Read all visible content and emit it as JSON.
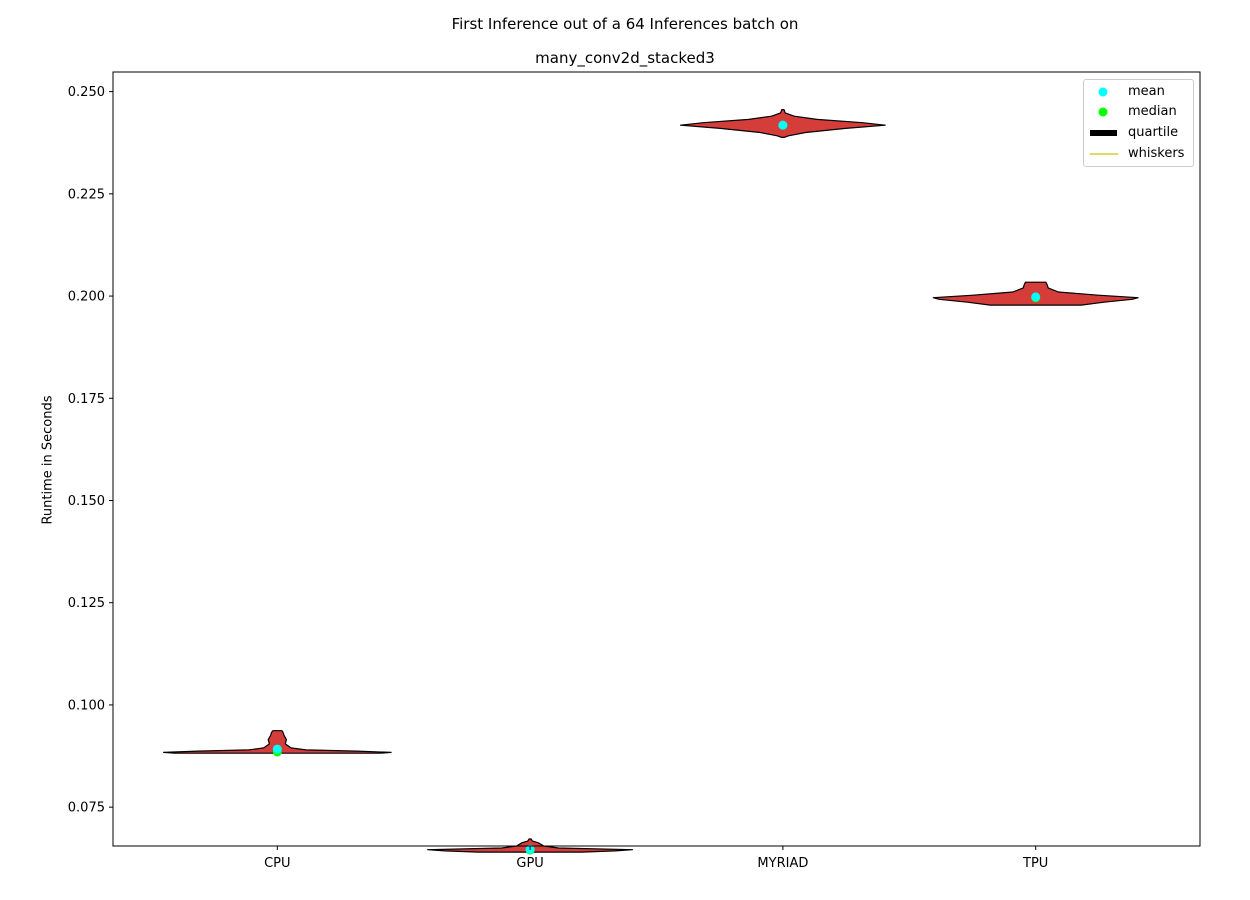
{
  "chart_data": {
    "type": "violin",
    "title_line1": "First Inference out of a 64 Inferences batch on",
    "title_line2": "many_conv2d_stacked3",
    "xlabel": "",
    "ylabel": "Runtime in Seconds",
    "categories": [
      "CPU",
      "GPU",
      "MYRIAD",
      "TPU"
    ],
    "ylim": [
      0.0655,
      0.2548
    ],
    "yticks": [
      0.075,
      0.1,
      0.125,
      0.15,
      0.175,
      0.2,
      0.225,
      0.25
    ],
    "ytick_labels": [
      "0.075",
      "0.100",
      "0.125",
      "0.150",
      "0.175",
      "0.200",
      "0.225",
      "0.250"
    ],
    "legend": [
      {
        "label": "mean",
        "kind": "dot",
        "color": "#00ffff"
      },
      {
        "label": "median",
        "kind": "dot",
        "color": "#00ff00"
      },
      {
        "label": "quartile",
        "kind": "bar",
        "color": "#000000"
      },
      {
        "label": "whiskers",
        "kind": "line",
        "color": "#c8c800"
      }
    ],
    "legend_placement": "top-right",
    "grid": false,
    "violin_color": "#d43d3a",
    "violins": [
      {
        "category": "CPU",
        "mean": 0.0892,
        "median": 0.0885,
        "profile": [
          [
            0.0882,
            0.9
          ],
          [
            0.0884,
            1.0
          ],
          [
            0.0887,
            0.7
          ],
          [
            0.089,
            0.25
          ],
          [
            0.0895,
            0.12
          ],
          [
            0.0905,
            0.07
          ],
          [
            0.0915,
            0.08
          ],
          [
            0.0925,
            0.06
          ],
          [
            0.0933,
            0.05
          ],
          [
            0.0937,
            0.04
          ]
        ]
      },
      {
        "category": "GPU",
        "mean": 0.0647,
        "median": 0.0645,
        "profile": [
          [
            0.064,
            0.45
          ],
          [
            0.0643,
            0.75
          ],
          [
            0.0646,
            0.9
          ],
          [
            0.065,
            0.25
          ],
          [
            0.0655,
            0.12
          ],
          [
            0.0663,
            0.07
          ],
          [
            0.0667,
            0.02
          ],
          [
            0.0672,
            0.01
          ]
        ]
      },
      {
        "category": "MYRIAD",
        "mean": 0.2418,
        "median": 0.2418,
        "profile": [
          [
            0.2388,
            0.01
          ],
          [
            0.2392,
            0.05
          ],
          [
            0.24,
            0.2
          ],
          [
            0.241,
            0.55
          ],
          [
            0.2418,
            0.9
          ],
          [
            0.2424,
            0.7
          ],
          [
            0.2432,
            0.3
          ],
          [
            0.244,
            0.1
          ],
          [
            0.2448,
            0.02
          ],
          [
            0.2456,
            0.01
          ]
        ]
      },
      {
        "category": "TPU",
        "mean": 0.1998,
        "median": 0.1996,
        "profile": [
          [
            0.1978,
            0.4
          ],
          [
            0.1985,
            0.6
          ],
          [
            0.1992,
            0.85
          ],
          [
            0.1996,
            0.9
          ],
          [
            0.2002,
            0.55
          ],
          [
            0.201,
            0.2
          ],
          [
            0.202,
            0.11
          ],
          [
            0.2028,
            0.1
          ],
          [
            0.2034,
            0.09
          ]
        ]
      }
    ]
  }
}
